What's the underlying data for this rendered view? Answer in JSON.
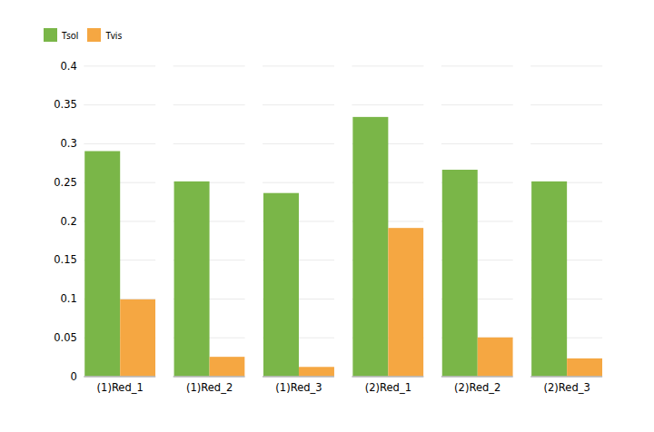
{
  "chart_data": {
    "type": "bar",
    "categories": [
      "(1)Red_1",
      "(1)Red_2",
      "(1)Red_3",
      "(2)Red_1",
      "(2)Red_2",
      "(2)Red_3"
    ],
    "series": [
      {
        "name": "Tsol",
        "color": "#7AB648",
        "values": [
          0.29,
          0.251,
          0.236,
          0.334,
          0.266,
          0.251
        ]
      },
      {
        "name": "Tvis",
        "color": "#F5A742",
        "values": [
          0.099,
          0.025,
          0.012,
          0.191,
          0.05,
          0.023
        ]
      }
    ],
    "ylim": [
      0,
      0.4
    ],
    "yticks": [
      0,
      0.05,
      0.1,
      0.15,
      0.2,
      0.25,
      0.3,
      0.35,
      0.4
    ],
    "grid": true,
    "legend": "upper left"
  }
}
